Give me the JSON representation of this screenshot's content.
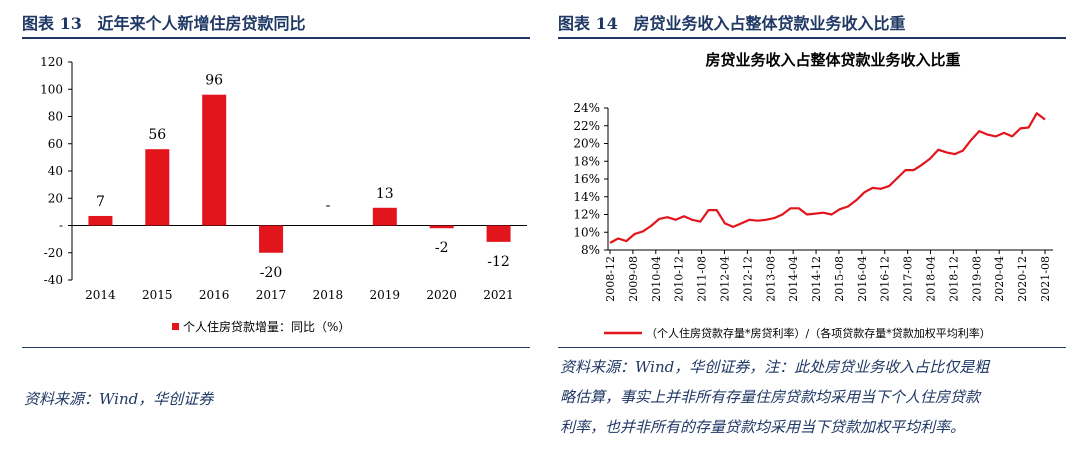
{
  "left": {
    "figure_label": "图表",
    "figure_number": "13",
    "figure_title": "近年来个人新增住房贷款同比",
    "source": "资料来源：Wind，华创证券"
  },
  "right": {
    "figure_label": "图表",
    "figure_number": "14",
    "figure_title": "房贷业务收入占整体贷款业务收入比重",
    "source_lines": [
      "资料来源：Wind，华创证券，注：此处房贷业务收入占比仅是粗",
      "略估算，事实上并非所有存量住房贷款均采用当下个人住房贷款",
      "利率，也并非所有的存量贷款均采用当下贷款加权平均利率。"
    ]
  },
  "chart_data": [
    {
      "type": "bar",
      "title": "",
      "categories": [
        "2014",
        "2015",
        "2016",
        "2017",
        "2018",
        "2019",
        "2020",
        "2021"
      ],
      "values": [
        7,
        56,
        96,
        -20,
        null,
        13,
        -2,
        -12
      ],
      "value_labels": [
        "7",
        "56",
        "96",
        "-20",
        "-",
        "13",
        "-2",
        "-12"
      ],
      "ylim": [
        -40,
        120
      ],
      "yticks": [
        -40,
        -20,
        0,
        20,
        40,
        60,
        80,
        100,
        120
      ],
      "ytick_labels": [
        "-40",
        "-20",
        "-",
        "20",
        "40",
        "60",
        "80",
        "100",
        "120"
      ],
      "legend": "个人住房贷款增量：同比（%）",
      "color": "#e2141c"
    },
    {
      "type": "line",
      "title": "房贷业务收入占整体贷款业务收入比重",
      "x_labels": [
        "2008-12",
        "2009-08",
        "2010-04",
        "2010-12",
        "2011-08",
        "2012-04",
        "2012-12",
        "2013-08",
        "2014-04",
        "2014-12",
        "2015-08",
        "2016-04",
        "2016-12",
        "2017-08",
        "2018-04",
        "2018-12",
        "2019-08",
        "2020-04",
        "2020-12",
        "2021-08"
      ],
      "series": [
        {
          "name": "（个人住房贷款存量*房贷利率）/（各项贷款存量*贷款加权平均利率）",
          "values": [
            8.8,
            9.3,
            9.0,
            9.8,
            10.1,
            10.7,
            11.5,
            11.7,
            11.4,
            11.8,
            11.4,
            11.2,
            12.5,
            12.5,
            11.0,
            10.6,
            11.0,
            11.4,
            11.3,
            11.4,
            11.6,
            12.0,
            12.7,
            12.7,
            12.0,
            12.1,
            12.2,
            12.0,
            12.6,
            12.9,
            13.6,
            14.5,
            15.0,
            14.9,
            15.2,
            16.1,
            17.0,
            17.0,
            17.6,
            18.3,
            19.3,
            19.0,
            18.8,
            19.2,
            20.4,
            21.4,
            21.0,
            20.8,
            21.2,
            20.8,
            21.7,
            21.8,
            23.4,
            22.7
          ]
        }
      ],
      "ylim": [
        8,
        24
      ],
      "ytick_labels": [
        "8%",
        "10%",
        "12%",
        "14%",
        "16%",
        "18%",
        "20%",
        "22%",
        "24%"
      ],
      "color": "#e2141c"
    }
  ]
}
